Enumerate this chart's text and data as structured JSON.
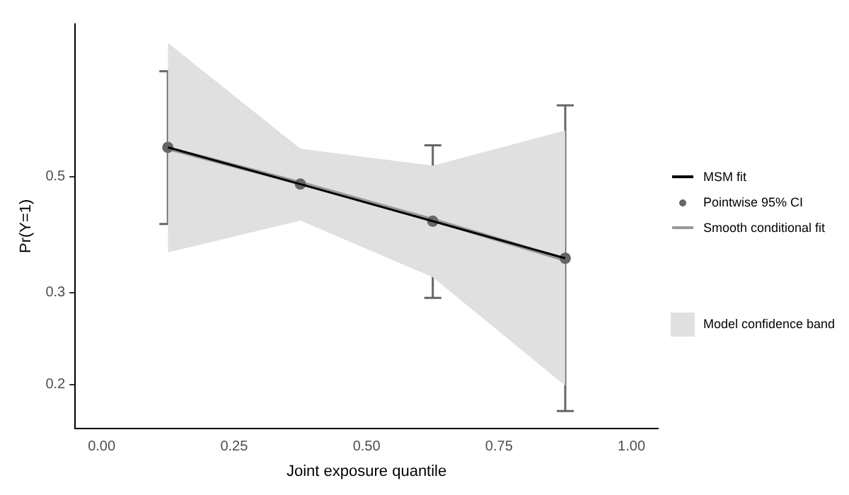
{
  "chart_data": {
    "type": "line",
    "xlabel": "Joint exposure quantile",
    "ylabel": "Pr(Y=1)",
    "log": "y",
    "x": [
      0.125,
      0.375,
      0.625,
      0.875
    ],
    "xlim": [
      -0.05,
      1.05
    ],
    "xticks": [
      {
        "value": 0,
        "label": "0.00"
      },
      {
        "value": 0.25,
        "label": "0.25"
      },
      {
        "value": 0.5,
        "label": "0.50"
      },
      {
        "value": 0.75,
        "label": "0.75"
      },
      {
        "value": 1,
        "label": "1.00"
      }
    ],
    "ylim": [
      0.165,
      0.98
    ],
    "yticks": [
      0.2,
      0.3,
      0.5
    ],
    "grid": false,
    "legend": "right",
    "series": [
      {
        "name": "Model confidence band",
        "type": "area",
        "color": "#e0e0e0",
        "values": [
          null,
          null,
          null,
          null
        ],
        "lower": [
          0.358,
          0.412,
          0.321,
          0.199
        ],
        "upper": [
          0.902,
          0.566,
          0.525,
          0.613
        ]
      },
      {
        "name": "Smooth conditional fit",
        "type": "line",
        "marker": "none",
        "color": "#999999",
        "values": [
          0.567,
          0.486,
          0.413,
          0.347
        ]
      },
      {
        "name": "Pointwise 95% CI",
        "type": "scatter",
        "marker": "circle",
        "color": "#666666",
        "values": [
          0.569,
          0.484,
          0.411,
          0.349
        ],
        "errors": [
          [
            0.406,
            0.796
          ],
          null,
          [
            0.293,
            0.574
          ],
          [
            0.178,
            0.685
          ]
        ]
      },
      {
        "name": "MSM fit",
        "type": "line",
        "marker": "none",
        "color": "#000000",
        "values": [
          0.569,
          0.484,
          0.411,
          0.349
        ]
      }
    ]
  }
}
